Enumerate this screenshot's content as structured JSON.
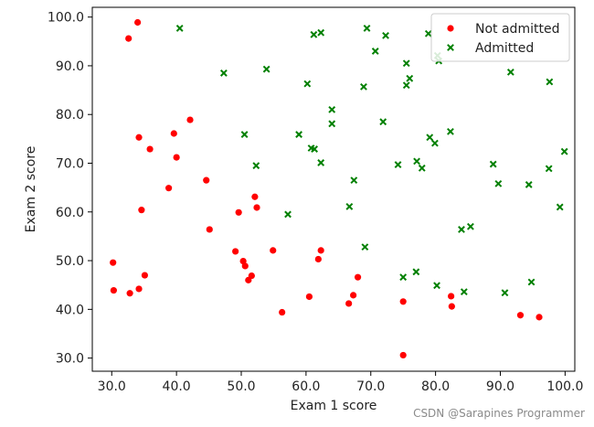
{
  "chart_data": {
    "type": "scatter",
    "title": "",
    "xlabel": "Exam 1 score",
    "ylabel": "Exam 2 score",
    "xlim": [
      27,
      101.5
    ],
    "ylim": [
      27.3,
      102
    ],
    "xticks": [
      30,
      40,
      50,
      60,
      70,
      80,
      90,
      100
    ],
    "yticks": [
      30,
      40,
      50,
      60,
      70,
      80,
      90,
      100
    ],
    "tick_format": "0.0",
    "grid": false,
    "legend_position": "top-right",
    "series": [
      {
        "name": "Not admitted",
        "marker": "circle",
        "color": "#ff0000",
        "points": [
          [
            34.0,
            98.9
          ],
          [
            32.6,
            95.6
          ],
          [
            30.3,
            43.9
          ],
          [
            30.2,
            49.6
          ],
          [
            32.8,
            43.3
          ],
          [
            34.2,
            44.2
          ],
          [
            35.1,
            47.0
          ],
          [
            34.6,
            60.4
          ],
          [
            35.9,
            72.9
          ],
          [
            34.2,
            75.3
          ],
          [
            38.8,
            64.9
          ],
          [
            40.0,
            71.2
          ],
          [
            39.6,
            76.1
          ],
          [
            42.1,
            78.9
          ],
          [
            44.6,
            66.5
          ],
          [
            45.1,
            56.4
          ],
          [
            49.1,
            51.9
          ],
          [
            49.6,
            59.9
          ],
          [
            50.3,
            49.9
          ],
          [
            50.6,
            48.9
          ],
          [
            51.1,
            46.0
          ],
          [
            51.6,
            46.9
          ],
          [
            52.1,
            63.1
          ],
          [
            52.4,
            60.9
          ],
          [
            54.9,
            52.1
          ],
          [
            56.3,
            39.4
          ],
          [
            60.5,
            42.6
          ],
          [
            61.9,
            50.3
          ],
          [
            62.3,
            52.1
          ],
          [
            66.6,
            41.2
          ],
          [
            67.3,
            42.9
          ],
          [
            68.0,
            46.6
          ],
          [
            75.0,
            41.6
          ],
          [
            75.0,
            30.6
          ],
          [
            82.4,
            42.7
          ],
          [
            82.5,
            40.6
          ],
          [
            93.1,
            38.8
          ],
          [
            96.0,
            38.4
          ]
        ]
      },
      {
        "name": "Admitted",
        "marker": "x",
        "color": "#008000",
        "points": [
          [
            40.5,
            97.7
          ],
          [
            47.3,
            88.5
          ],
          [
            53.9,
            89.3
          ],
          [
            62.3,
            96.8
          ],
          [
            61.2,
            96.4
          ],
          [
            60.2,
            86.3
          ],
          [
            64.0,
            81.0
          ],
          [
            64.0,
            78.1
          ],
          [
            50.5,
            75.9
          ],
          [
            52.3,
            69.5
          ],
          [
            58.9,
            75.9
          ],
          [
            60.8,
            73.1
          ],
          [
            61.3,
            72.9
          ],
          [
            62.3,
            70.1
          ],
          [
            57.2,
            59.5
          ],
          [
            67.4,
            66.5
          ],
          [
            66.7,
            61.1
          ],
          [
            69.1,
            52.8
          ],
          [
            68.9,
            85.7
          ],
          [
            69.4,
            97.7
          ],
          [
            70.7,
            93.0
          ],
          [
            72.3,
            96.2
          ],
          [
            71.9,
            78.5
          ],
          [
            75.5,
            90.5
          ],
          [
            76.0,
            87.4
          ],
          [
            75.5,
            86.0
          ],
          [
            74.2,
            69.7
          ],
          [
            77.1,
            70.4
          ],
          [
            77.9,
            69.0
          ],
          [
            79.1,
            75.3
          ],
          [
            79.9,
            74.1
          ],
          [
            78.9,
            96.6
          ],
          [
            80.3,
            92.1
          ],
          [
            80.5,
            91.0
          ],
          [
            82.3,
            76.5
          ],
          [
            75.0,
            46.6
          ],
          [
            77.0,
            47.7
          ],
          [
            80.2,
            44.9
          ],
          [
            84.4,
            43.6
          ],
          [
            84.0,
            56.4
          ],
          [
            85.4,
            57.0
          ],
          [
            88.9,
            69.8
          ],
          [
            89.7,
            65.8
          ],
          [
            90.7,
            43.4
          ],
          [
            91.6,
            88.7
          ],
          [
            94.4,
            65.6
          ],
          [
            94.8,
            45.6
          ],
          [
            97.5,
            68.9
          ],
          [
            97.6,
            86.7
          ],
          [
            99.2,
            61.0
          ],
          [
            99.9,
            72.4
          ]
        ]
      }
    ]
  },
  "watermark": "CSDN @Sarapines Programmer"
}
